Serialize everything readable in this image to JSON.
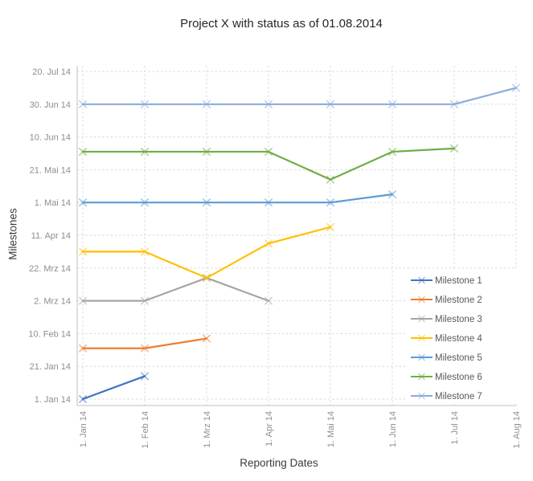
{
  "title": "Project X with status as of 01.08.2014",
  "chart_data": {
    "type": "line",
    "title": "Project X with status as of 01.08.2014",
    "xlabel": "Reporting Dates",
    "ylabel": "Milestones",
    "grid": "dashed",
    "legend_position": "right",
    "x_axis": {
      "title": "Reporting Dates",
      "categories": [
        "1. Jan 14",
        "1. Feb 14",
        "1. Mrz 14",
        "1. Apr 14",
        "1. Mai 14",
        "1. Jun 14",
        "1. Jul 14",
        "1. Aug 14"
      ]
    },
    "y_axis": {
      "title": "Milestones",
      "unit": "day-of-year-2014",
      "range_days": [
        1,
        201
      ],
      "ticks": [
        {
          "label": "1. Jan 14",
          "day": 1
        },
        {
          "label": "21. Jan 14",
          "day": 21
        },
        {
          "label": "10. Feb 14",
          "day": 41
        },
        {
          "label": "2. Mrz 14",
          "day": 61
        },
        {
          "label": "22. Mrz 14",
          "day": 81
        },
        {
          "label": "11. Apr 14",
          "day": 101
        },
        {
          "label": "1. Mai 14",
          "day": 121
        },
        {
          "label": "21. Mai 14",
          "day": 141
        },
        {
          "label": "10. Jun 14",
          "day": 161
        },
        {
          "label": "30. Jun 14",
          "day": 181
        },
        {
          "label": "20. Jul 14",
          "day": 201
        }
      ]
    },
    "series": [
      {
        "name": "Milestone 1",
        "color": "#4472C4",
        "marker": "x",
        "dates": [
          "1. Jan 14",
          "15. Jan 14"
        ],
        "days": [
          1,
          15
        ]
      },
      {
        "name": "Milestone 2",
        "color": "#ED7D31",
        "marker": "x",
        "dates": [
          "1. Feb 14",
          "1. Feb 14",
          "7. Feb 14"
        ],
        "days": [
          32,
          32,
          38
        ]
      },
      {
        "name": "Milestone 3",
        "color": "#A5A5A5",
        "marker": "x",
        "dates": [
          "2. Mrz 14",
          "2. Mrz 14",
          "16. Mrz 14",
          "2. Mrz 14"
        ],
        "days": [
          61,
          61,
          75,
          61
        ]
      },
      {
        "name": "Milestone 4",
        "color": "#FFC000",
        "marker": "x",
        "dates": [
          "1. Apr 14",
          "1. Apr 14",
          "16. Mrz 14",
          "6. Apr 14",
          "16. Apr 14"
        ],
        "days": [
          91,
          91,
          75,
          96,
          106
        ]
      },
      {
        "name": "Milestone 5",
        "color": "#5B9BD5",
        "marker": "x",
        "dates": [
          "1. Mai 14",
          "1. Mai 14",
          "1. Mai 14",
          "1. Mai 14",
          "1. Mai 14",
          "6. Mai 14"
        ],
        "days": [
          121,
          121,
          121,
          121,
          121,
          126
        ]
      },
      {
        "name": "Milestone 6",
        "color": "#70AD47",
        "marker": "x",
        "dates": [
          "1. Jun 14",
          "1. Jun 14",
          "1. Jun 14",
          "1. Jun 14",
          "15. Mai 14",
          "1. Jun 14",
          "3. Jun 14"
        ],
        "days": [
          152,
          152,
          152,
          152,
          135,
          152,
          154
        ]
      },
      {
        "name": "Milestone 7",
        "color": "#8EAADB",
        "marker": "x",
        "dates": [
          "30. Jun 14",
          "30. Jun 14",
          "30. Jun 14",
          "30. Jun 14",
          "30. Jun 14",
          "30. Jun 14",
          "30. Jun 14",
          "10. Jul 14"
        ],
        "days": [
          181,
          181,
          181,
          181,
          181,
          181,
          181,
          191
        ]
      }
    ]
  }
}
